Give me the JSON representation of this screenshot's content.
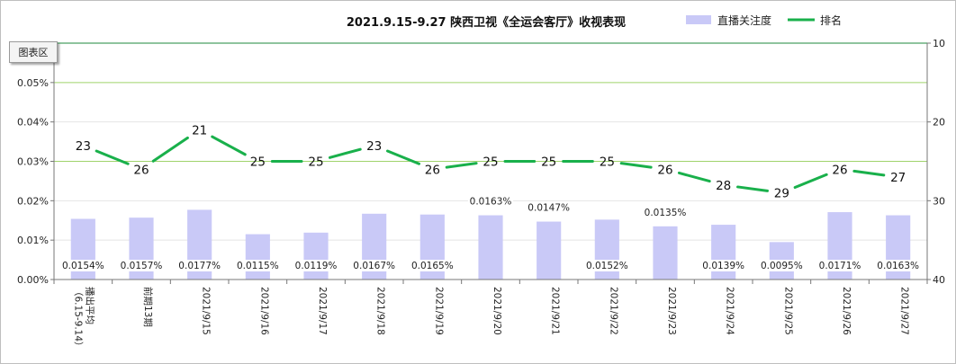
{
  "chart_area_tag": "图表区",
  "chart_data": {
    "type": "bar+line",
    "title": "2021.9.15-9.27 陕西卫视《全运会客厅》收视表现",
    "legend_position": "top-right",
    "categories": [
      "播出平均（6.15-9.14）",
      "前期13期",
      "2021/9/15",
      "2021/9/16",
      "2021/9/17",
      "2021/9/18",
      "2021/9/19",
      "2021/9/20",
      "2021/9/21",
      "2021/9/22",
      "2021/9/23",
      "2021/9/24",
      "2021/9/25",
      "2021/9/26",
      "2021/9/27"
    ],
    "series": [
      {
        "name": "直播关注度",
        "type": "bar",
        "axis": "left",
        "color": "#c9c9f7",
        "values": [
          0.0154,
          0.0157,
          0.0177,
          0.0115,
          0.0119,
          0.0167,
          0.0165,
          0.0163,
          0.0147,
          0.0152,
          0.0135,
          0.0139,
          0.0095,
          0.0171,
          0.0163
        ],
        "labels": [
          "0.0154%",
          "0.0157%",
          "0.0177%",
          "0.0115%",
          "0.0119%",
          "0.0167%",
          "0.0165%",
          "0.0163%",
          "0.0147%",
          "0.0152%",
          "0.0135%",
          "0.0139%",
          "0.0095%",
          "0.0171%",
          "0.0163%"
        ]
      },
      {
        "name": "排名",
        "type": "line",
        "axis": "right",
        "color": "#19b04b",
        "values": [
          23,
          26,
          21,
          25,
          25,
          23,
          26,
          25,
          25,
          25,
          26,
          28,
          29,
          26,
          27
        ],
        "labels": [
          "23",
          "26",
          "21",
          "25",
          "25",
          "23",
          "26",
          "25",
          "25",
          "25",
          "26",
          "28",
          "29",
          "26",
          "27"
        ]
      }
    ],
    "y_left": {
      "min": 0,
      "max": 0.06,
      "ticks": [
        "0.00%",
        "0.01%",
        "0.02%",
        "0.03%",
        "0.04%",
        "0.05%"
      ],
      "tick_values": [
        0,
        0.01,
        0.02,
        0.03,
        0.04,
        0.05
      ]
    },
    "y_right": {
      "min": 10,
      "max": 40,
      "reversed": true,
      "ticks": [
        "10",
        "20",
        "30",
        "40"
      ],
      "tick_values": [
        10,
        20,
        30,
        40
      ]
    },
    "grid": true
  }
}
